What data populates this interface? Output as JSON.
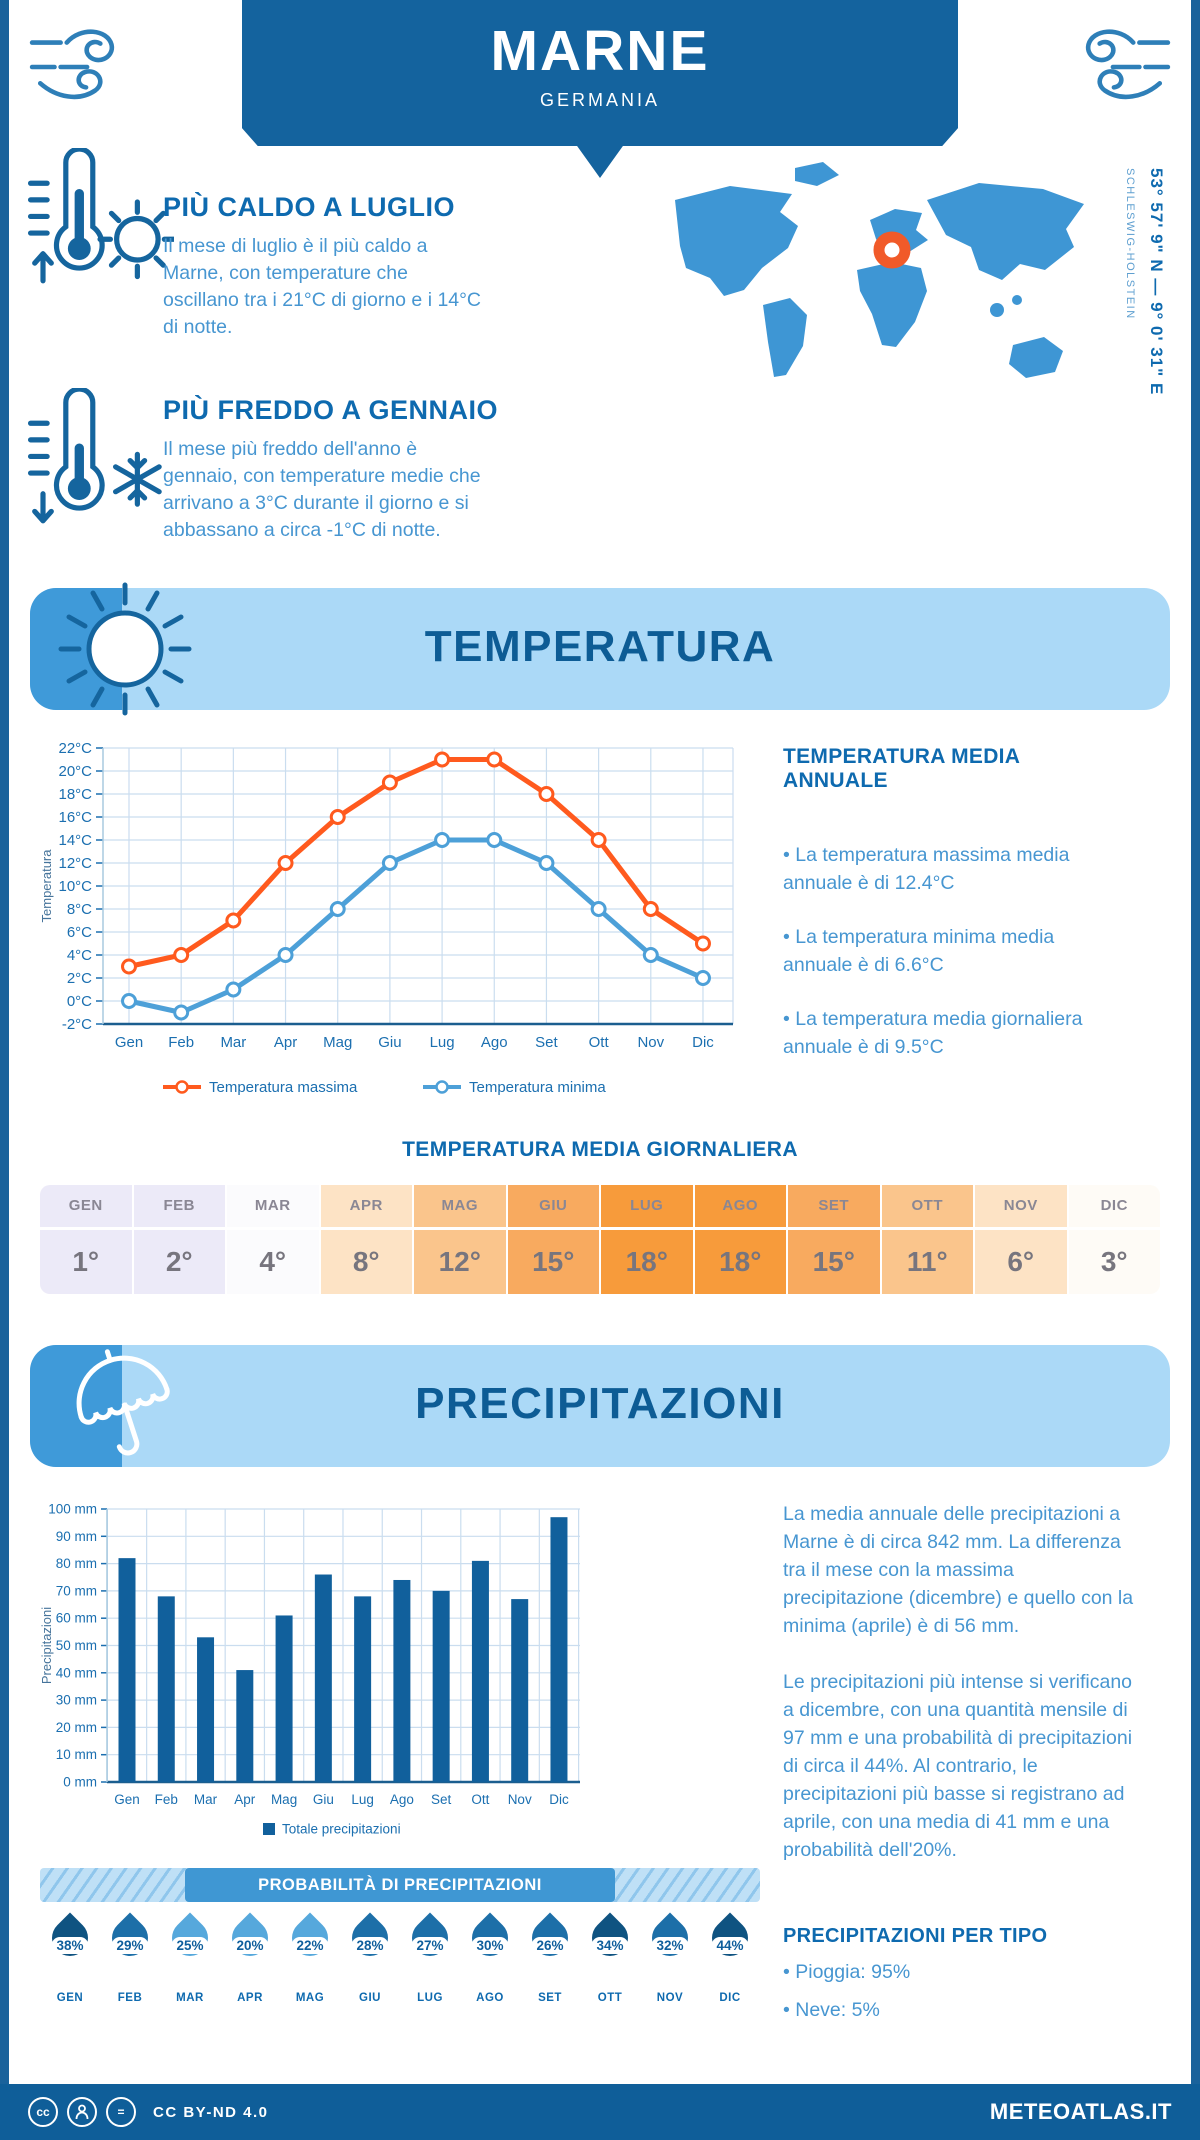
{
  "header": {
    "title": "MARNE",
    "subtitle": "GERMANIA"
  },
  "highlights": [
    {
      "title": "PIÙ CALDO A LUGLIO",
      "text": "Il mese di luglio è il più caldo a Marne, con temperature che oscillano tra i 21°C di giorno e i 14°C di notte."
    },
    {
      "title": "PIÙ FREDDO A GENNAIO",
      "text": "Il mese più freddo dell'anno è gennaio, con temperature medie che arrivano a 3°C durante il giorno e si abbassano a circa -1°C di notte."
    }
  ],
  "map": {
    "coordinates": "53° 57' 9\" N — 9° 0' 31\" E",
    "region": "SCHLESWIG-HOLSTEIN"
  },
  "temperature": {
    "section_title": "TEMPERATURA",
    "annual_heading": "TEMPERATURA MEDIA ANNUALE",
    "annual_bullets": [
      "• La temperatura massima media annuale è di 12.4°C",
      "• La temperatura minima media annuale è di 6.6°C",
      "• La temperatura media giornaliera annuale è di 9.5°C"
    ],
    "daily_heading": "TEMPERATURA MEDIA GIORNALIERA",
    "daily": [
      {
        "month": "GEN",
        "value": "1°",
        "bg": "#ECEAF8"
      },
      {
        "month": "FEB",
        "value": "2°",
        "bg": "#ECEAF8"
      },
      {
        "month": "MAR",
        "value": "4°",
        "bg": "#FBFBFD"
      },
      {
        "month": "APR",
        "value": "8°",
        "bg": "#FDE3C5"
      },
      {
        "month": "MAG",
        "value": "12°",
        "bg": "#FAC58C"
      },
      {
        "month": "GIU",
        "value": "15°",
        "bg": "#F8AA5F"
      },
      {
        "month": "LUG",
        "value": "18°",
        "bg": "#F79B3B"
      },
      {
        "month": "AGO",
        "value": "18°",
        "bg": "#F79B3B"
      },
      {
        "month": "SET",
        "value": "15°",
        "bg": "#F8AA5F"
      },
      {
        "month": "OTT",
        "value": "11°",
        "bg": "#FAC58C"
      },
      {
        "month": "NOV",
        "value": "6°",
        "bg": "#FDE3C5"
      },
      {
        "month": "DIC",
        "value": "3°",
        "bg": "#FEFBF6"
      }
    ]
  },
  "precipitation": {
    "section_title": "PRECIPITAZIONI",
    "paragraphs": [
      "La media annuale delle precipitazioni a Marne è di circa 842 mm. La differenza tra il mese con la massima precipitazione (dicembre) e quello con la minima (aprile) è di 56 mm.",
      "Le precipitazioni più intense si verificano a dicembre, con una quantità mensile di 97 mm e una probabilità di precipitazioni di circa il 44%. Al contrario, le precipitazioni più basse si registrano ad aprile, con una media di 41 mm e una probabilità dell'20%."
    ],
    "probability_title": "PROBABILITÀ DI PRECIPITAZIONI",
    "probability": [
      {
        "month": "GEN",
        "percent": "38%"
      },
      {
        "month": "FEB",
        "percent": "29%"
      },
      {
        "month": "MAR",
        "percent": "25%"
      },
      {
        "month": "APR",
        "percent": "20%"
      },
      {
        "month": "MAG",
        "percent": "22%"
      },
      {
        "month": "GIU",
        "percent": "28%"
      },
      {
        "month": "LUG",
        "percent": "27%"
      },
      {
        "month": "AGO",
        "percent": "30%"
      },
      {
        "month": "SET",
        "percent": "26%"
      },
      {
        "month": "OTT",
        "percent": "34%"
      },
      {
        "month": "NOV",
        "percent": "32%"
      },
      {
        "month": "DIC",
        "percent": "44%"
      }
    ],
    "types_heading": "PRECIPITAZIONI PER TIPO",
    "types": [
      "• Pioggia: 95%",
      "• Neve: 5%"
    ]
  },
  "footer": {
    "license": "CC BY-ND 4.0",
    "brand": "METEOATLAS.IT"
  },
  "colors": {
    "accent_dark_blue": "#14639E",
    "banner_light_blue": "#ABD9F7",
    "icon_square_blue": "#3F9AD9",
    "heading_blue": "#0E6AAF",
    "body_blue": "#4796D1",
    "title_navy": "#0D5C95",
    "axis_text": "#1B6FB0",
    "grid_line": "#CADDEF",
    "map_blue": "#3E96D4",
    "marker_orange": "#F15A29",
    "probability_bar": "#3F97D3",
    "drop_dark": "#0F5381",
    "drop_medium": "#1D6FA8",
    "drop_light": "#56A8DC"
  },
  "chart_data": [
    {
      "type": "line",
      "x": [
        "Gen",
        "Feb",
        "Mar",
        "Apr",
        "Mag",
        "Giu",
        "Lug",
        "Ago",
        "Set",
        "Ott",
        "Nov",
        "Dic"
      ],
      "series": [
        {
          "name": "Temperatura massima",
          "color": "#FF5A1E",
          "values": [
            3,
            4,
            7,
            12,
            16,
            19,
            21,
            21,
            18,
            14,
            8,
            5
          ]
        },
        {
          "name": "Temperatura minima",
          "color": "#4DA0D8",
          "values": [
            0,
            -1,
            1,
            4,
            8,
            12,
            14,
            14,
            12,
            8,
            4,
            2
          ]
        }
      ],
      "ylabel": "Temperatura",
      "ylim": [
        -2,
        22
      ],
      "ytick_step": 2,
      "yunit": "°C",
      "grid": true,
      "legend_position": "bottom"
    },
    {
      "type": "bar",
      "categories": [
        "Gen",
        "Feb",
        "Mar",
        "Apr",
        "Mag",
        "Giu",
        "Lug",
        "Ago",
        "Set",
        "Ott",
        "Nov",
        "Dic"
      ],
      "values": [
        82,
        68,
        53,
        41,
        61,
        76,
        68,
        74,
        70,
        81,
        67,
        97
      ],
      "legend": "Totale precipitazioni",
      "bar_color": "#11609C",
      "ylabel": "Precipitazioni",
      "ylim": [
        0,
        100
      ],
      "ytick_step": 10,
      "yunit": " mm",
      "grid": true,
      "legend_position": "bottom"
    }
  ]
}
